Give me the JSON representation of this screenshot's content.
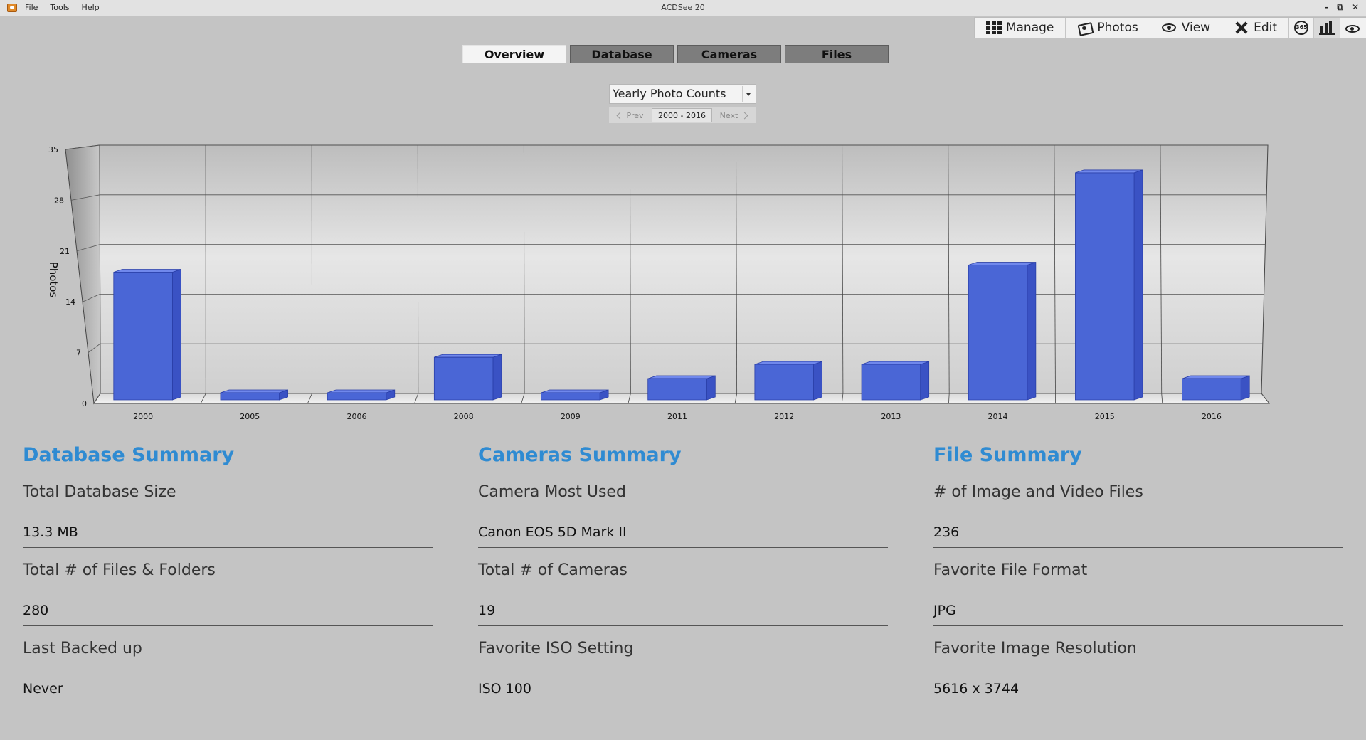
{
  "window": {
    "title": "ACDSee 20",
    "menu": [
      "File",
      "Tools",
      "Help"
    ],
    "controls": [
      "–",
      "⧉",
      "✕"
    ]
  },
  "modes": [
    {
      "label": "Manage",
      "icon": "grid-icon"
    },
    {
      "label": "Photos",
      "icon": "photos-icon"
    },
    {
      "label": "View",
      "icon": "eye-icon"
    },
    {
      "label": "Edit",
      "icon": "edit-icon"
    },
    {
      "label": "",
      "icon": "365-icon",
      "text": "365"
    },
    {
      "label": "",
      "icon": "dashboard-icon"
    },
    {
      "label": "",
      "icon": "develop-eye-icon"
    }
  ],
  "tabs": [
    "Overview",
    "Database",
    "Cameras",
    "Files"
  ],
  "active_tab": "Overview",
  "chart_selector": {
    "value": "Yearly Photo Counts",
    "prev": "Prev",
    "range": "2000 - 2016",
    "next": "Next"
  },
  "chart_data": {
    "type": "bar",
    "categories": [
      "2000",
      "2005",
      "2006",
      "2008",
      "2009",
      "2011",
      "2012",
      "2013",
      "2014",
      "2015",
      "2016"
    ],
    "values": [
      18,
      1,
      1,
      6,
      1,
      3,
      5,
      5,
      19,
      32,
      3
    ],
    "ylabel": "Photos",
    "yticks": [
      0,
      7,
      14,
      21,
      28,
      35
    ],
    "ylim": [
      0,
      35
    ],
    "bar_color": "#4a66d6",
    "grid": true
  },
  "summaries": [
    {
      "title": "Database Summary",
      "fields": [
        {
          "label": "Total Database Size",
          "value": "13.3 MB"
        },
        {
          "label": "Total # of Files & Folders",
          "value": "280"
        },
        {
          "label": "Last Backed up",
          "value": "Never"
        }
      ]
    },
    {
      "title": "Cameras Summary",
      "fields": [
        {
          "label": "Camera Most Used",
          "value": "Canon EOS 5D Mark II"
        },
        {
          "label": "Total # of Cameras",
          "value": "19"
        },
        {
          "label": "Favorite ISO Setting",
          "value": "ISO 100"
        }
      ]
    },
    {
      "title": "File Summary",
      "fields": [
        {
          "label": "# of Image and Video Files",
          "value": "236"
        },
        {
          "label": "Favorite File Format",
          "value": "JPG"
        },
        {
          "label": "Favorite Image Resolution",
          "value": "5616 x 3744"
        }
      ]
    }
  ]
}
